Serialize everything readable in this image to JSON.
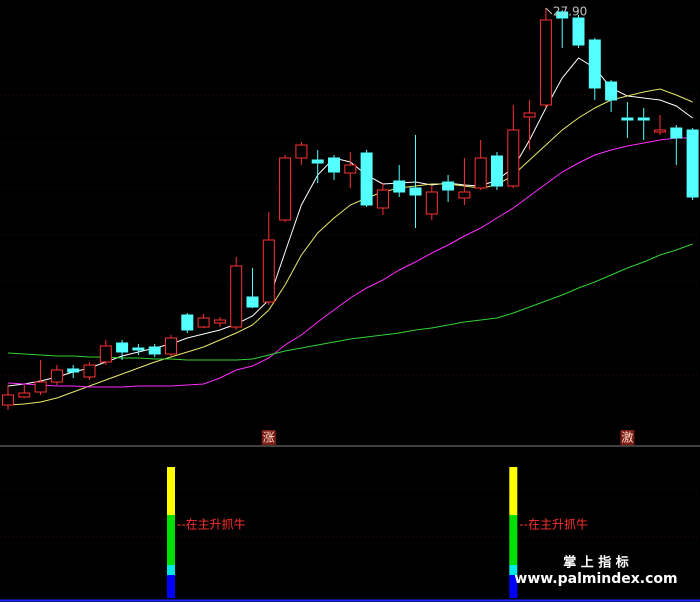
{
  "chart_data": [
    {
      "type": "candlestick",
      "up_color": "#ff3232",
      "down_color": "#54ffff",
      "ylim": [
        10.42,
        28.22
      ],
      "open": [
        12.02,
        12.34,
        12.54,
        12.94,
        13.46,
        13.14,
        13.74,
        14.5,
        14.3,
        14.34,
        14.06,
        15.62,
        15.14,
        15.3,
        15.14,
        16.34,
        16.14,
        19.42,
        21.9,
        21.82,
        21.9,
        21.3,
        22.1,
        19.9,
        20.98,
        20.7,
        19.66,
        20.94,
        20.3,
        20.7,
        21.98,
        20.78,
        23.54,
        24.02,
        27.74,
        27.5,
        26.62,
        24.94,
        23.5,
        23.5,
        22.94,
        23.1,
        23.02
      ],
      "close": [
        12.42,
        12.5,
        12.94,
        13.42,
        13.34,
        13.62,
        14.38,
        14.14,
        14.22,
        14.06,
        14.7,
        15.02,
        15.5,
        15.42,
        17.58,
        15.94,
        18.62,
        21.9,
        22.42,
        21.7,
        21.34,
        21.62,
        20.02,
        20.62,
        20.54,
        20.42,
        20.54,
        20.62,
        20.54,
        21.9,
        20.78,
        23.02,
        23.7,
        27.42,
        27.5,
        26.42,
        24.7,
        24.22,
        23.42,
        23.42,
        23.02,
        22.7,
        20.34
      ],
      "high": [
        12.82,
        12.82,
        13.82,
        13.62,
        13.62,
        13.74,
        14.62,
        14.62,
        14.46,
        14.46,
        14.82,
        15.7,
        15.66,
        15.54,
        17.94,
        17.5,
        19.74,
        22.02,
        22.54,
        22.22,
        22.02,
        22.14,
        22.22,
        20.9,
        21.62,
        22.82,
        20.82,
        21.22,
        21.9,
        22.62,
        22.14,
        24.02,
        24.22,
        27.9,
        27.82,
        27.62,
        26.7,
        25.02,
        24.14,
        23.9,
        23.62,
        23.22,
        23.1
      ],
      "low": [
        11.82,
        12.3,
        12.42,
        12.82,
        13.1,
        13.02,
        13.62,
        13.82,
        14.02,
        13.94,
        13.98,
        14.9,
        15.1,
        15.14,
        15.02,
        15.9,
        16.02,
        19.34,
        21.62,
        20.9,
        21.02,
        20.7,
        19.94,
        19.62,
        20.34,
        19.1,
        19.42,
        20.14,
        20.02,
        20.62,
        20.62,
        20.7,
        22.22,
        23.9,
        26.3,
        26.3,
        24.22,
        23.74,
        22.7,
        22.62,
        22.82,
        21.62,
        20.22
      ],
      "high_label": "27.90",
      "lines": [
        {
          "color": "#ffffff",
          "values": [
            12.78,
            12.86,
            12.98,
            13.14,
            13.34,
            13.5,
            13.74,
            13.98,
            14.14,
            14.3,
            14.46,
            14.7,
            14.86,
            15.02,
            15.26,
            15.58,
            16.22,
            18.14,
            20.02,
            21.22,
            21.9,
            21.74,
            21.22,
            20.86,
            20.9,
            20.94,
            20.82,
            20.9,
            20.82,
            20.78,
            21.02,
            21.5,
            22.62,
            23.9,
            25.1,
            25.9,
            25.5,
            24.7,
            24.38,
            24.3,
            24.22,
            23.98,
            23.5
          ]
        },
        {
          "color": "#e8e86a",
          "values": [
            12.02,
            12.06,
            12.14,
            12.3,
            12.54,
            12.78,
            13.02,
            13.26,
            13.5,
            13.74,
            13.94,
            14.14,
            14.34,
            14.62,
            14.9,
            15.22,
            15.82,
            16.82,
            18.02,
            18.9,
            19.5,
            20.02,
            20.3,
            20.54,
            20.7,
            20.78,
            20.86,
            20.86,
            20.78,
            20.7,
            20.82,
            21.22,
            21.82,
            22.42,
            23.02,
            23.5,
            23.9,
            24.22,
            24.38,
            24.54,
            24.66,
            24.42,
            24.14
          ]
        },
        {
          "color": "#ff2cff",
          "values": [
            12.9,
            12.86,
            12.82,
            12.78,
            12.78,
            12.74,
            12.74,
            12.74,
            12.78,
            12.78,
            12.78,
            12.82,
            12.86,
            13.1,
            13.42,
            13.58,
            13.9,
            14.42,
            14.82,
            15.34,
            15.82,
            16.3,
            16.7,
            17.02,
            17.42,
            17.74,
            18.1,
            18.42,
            18.78,
            19.1,
            19.5,
            19.9,
            20.38,
            20.86,
            21.34,
            21.7,
            22.02,
            22.22,
            22.38,
            22.5,
            22.62,
            22.7,
            22.7
          ]
        },
        {
          "color": "#32d232",
          "values": [
            14.1,
            14.06,
            14.02,
            13.98,
            13.98,
            13.94,
            13.94,
            13.9,
            13.9,
            13.86,
            13.86,
            13.82,
            13.82,
            13.82,
            13.82,
            13.86,
            14.02,
            14.18,
            14.3,
            14.42,
            14.54,
            14.66,
            14.74,
            14.82,
            14.9,
            15.02,
            15.1,
            15.22,
            15.34,
            15.42,
            15.5,
            15.7,
            15.94,
            16.18,
            16.42,
            16.7,
            16.94,
            17.22,
            17.5,
            17.74,
            18.02,
            18.22,
            18.46
          ]
        }
      ],
      "signals": [
        null,
        null,
        null,
        null,
        null,
        null,
        null,
        null,
        null,
        null,
        null,
        null,
        null,
        null,
        null,
        null,
        "涨",
        null,
        null,
        null,
        null,
        null,
        null,
        null,
        null,
        null,
        null,
        null,
        null,
        null,
        null,
        null,
        null,
        null,
        null,
        null,
        null,
        null,
        "激",
        null,
        null,
        null,
        null
      ]
    },
    {
      "type": "bar",
      "stacked": true,
      "ylim": [
        0,
        13.5
      ],
      "series": [
        {
          "color": "#0000ff",
          "values": [
            null,
            null,
            null,
            null,
            null,
            null,
            null,
            null,
            null,
            null,
            2.3,
            null,
            null,
            null,
            null,
            null,
            null,
            null,
            null,
            null,
            null,
            null,
            null,
            null,
            null,
            null,
            null,
            null,
            null,
            null,
            null,
            2.3,
            null,
            null,
            null,
            null,
            null,
            null,
            null,
            null,
            null,
            null,
            null
          ]
        },
        {
          "color": "#00e8e8",
          "values": [
            null,
            null,
            null,
            null,
            null,
            null,
            null,
            null,
            null,
            null,
            1,
            null,
            null,
            null,
            null,
            null,
            null,
            null,
            null,
            null,
            null,
            null,
            null,
            null,
            null,
            null,
            null,
            null,
            null,
            null,
            null,
            1,
            null,
            null,
            null,
            null,
            null,
            null,
            null,
            null,
            null,
            null,
            null
          ]
        },
        {
          "color": "#00e000",
          "values": [
            null,
            null,
            null,
            null,
            null,
            null,
            null,
            null,
            null,
            null,
            5,
            null,
            null,
            null,
            null,
            null,
            null,
            null,
            null,
            null,
            null,
            null,
            null,
            null,
            null,
            null,
            null,
            null,
            null,
            null,
            null,
            5,
            null,
            null,
            null,
            null,
            null,
            null,
            null,
            null,
            null,
            null,
            null
          ]
        },
        {
          "color": "#ffff00",
          "values": [
            null,
            null,
            null,
            null,
            null,
            null,
            null,
            null,
            null,
            null,
            4.8,
            null,
            null,
            null,
            null,
            null,
            null,
            null,
            null,
            null,
            null,
            null,
            null,
            null,
            null,
            null,
            null,
            null,
            null,
            null,
            null,
            4.8,
            null,
            null,
            null,
            null,
            null,
            null,
            null,
            null,
            null,
            null,
            null
          ]
        }
      ],
      "labels": [
        null,
        null,
        null,
        null,
        null,
        null,
        null,
        null,
        null,
        null,
        "--在主升抓牛",
        null,
        null,
        null,
        null,
        null,
        null,
        null,
        null,
        null,
        null,
        null,
        null,
        null,
        null,
        null,
        null,
        null,
        null,
        null,
        null,
        "--在主升抓牛",
        null,
        null,
        null,
        null,
        null,
        null,
        null,
        null,
        null,
        null,
        null
      ],
      "label_color": "#ff3030"
    }
  ],
  "watermark": {
    "title": "掌 上 指 标",
    "url": "www.palmindex.com"
  }
}
